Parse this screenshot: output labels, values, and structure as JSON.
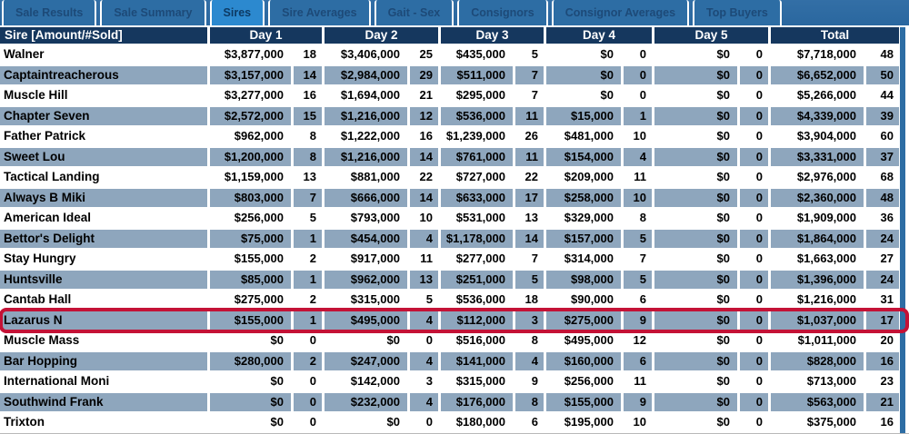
{
  "tabs": [
    {
      "label": "Sale Results",
      "active": false
    },
    {
      "label": "Sale Summary",
      "active": false
    },
    {
      "label": "Sires",
      "active": true
    },
    {
      "label": "Sire Averages",
      "active": false
    },
    {
      "label": "Gait - Sex",
      "active": false
    },
    {
      "label": "Consignors",
      "active": false
    },
    {
      "label": "Consignor Averages",
      "active": false
    },
    {
      "label": "Top Buyers",
      "active": false
    }
  ],
  "table": {
    "sire_header": "Sire [Amount/#Sold]",
    "day_headers": [
      "Day 1",
      "Day 2",
      "Day 3",
      "Day 4",
      "Day 5",
      "Total"
    ],
    "rows": [
      {
        "sire": "Walner",
        "shaded": false,
        "highlighted": false,
        "values": [
          [
            "$3,877,000",
            "18"
          ],
          [
            "$3,406,000",
            "25"
          ],
          [
            "$435,000",
            "5"
          ],
          [
            "$0",
            "0"
          ],
          [
            "$0",
            "0"
          ],
          [
            "$7,718,000",
            "48"
          ]
        ]
      },
      {
        "sire": "Captaintreacherous",
        "shaded": true,
        "highlighted": false,
        "values": [
          [
            "$3,157,000",
            "14"
          ],
          [
            "$2,984,000",
            "29"
          ],
          [
            "$511,000",
            "7"
          ],
          [
            "$0",
            "0"
          ],
          [
            "$0",
            "0"
          ],
          [
            "$6,652,000",
            "50"
          ]
        ]
      },
      {
        "sire": "Muscle Hill",
        "shaded": false,
        "highlighted": false,
        "values": [
          [
            "$3,277,000",
            "16"
          ],
          [
            "$1,694,000",
            "21"
          ],
          [
            "$295,000",
            "7"
          ],
          [
            "$0",
            "0"
          ],
          [
            "$0",
            "0"
          ],
          [
            "$5,266,000",
            "44"
          ]
        ]
      },
      {
        "sire": "Chapter Seven",
        "shaded": true,
        "highlighted": false,
        "values": [
          [
            "$2,572,000",
            "15"
          ],
          [
            "$1,216,000",
            "12"
          ],
          [
            "$536,000",
            "11"
          ],
          [
            "$15,000",
            "1"
          ],
          [
            "$0",
            "0"
          ],
          [
            "$4,339,000",
            "39"
          ]
        ]
      },
      {
        "sire": "Father Patrick",
        "shaded": false,
        "highlighted": false,
        "values": [
          [
            "$962,000",
            "8"
          ],
          [
            "$1,222,000",
            "16"
          ],
          [
            "$1,239,000",
            "26"
          ],
          [
            "$481,000",
            "10"
          ],
          [
            "$0",
            "0"
          ],
          [
            "$3,904,000",
            "60"
          ]
        ]
      },
      {
        "sire": "Sweet Lou",
        "shaded": true,
        "highlighted": false,
        "values": [
          [
            "$1,200,000",
            "8"
          ],
          [
            "$1,216,000",
            "14"
          ],
          [
            "$761,000",
            "11"
          ],
          [
            "$154,000",
            "4"
          ],
          [
            "$0",
            "0"
          ],
          [
            "$3,331,000",
            "37"
          ]
        ]
      },
      {
        "sire": "Tactical Landing",
        "shaded": false,
        "highlighted": false,
        "values": [
          [
            "$1,159,000",
            "13"
          ],
          [
            "$881,000",
            "22"
          ],
          [
            "$727,000",
            "22"
          ],
          [
            "$209,000",
            "11"
          ],
          [
            "$0",
            "0"
          ],
          [
            "$2,976,000",
            "68"
          ]
        ]
      },
      {
        "sire": "Always B Miki",
        "shaded": true,
        "highlighted": false,
        "values": [
          [
            "$803,000",
            "7"
          ],
          [
            "$666,000",
            "14"
          ],
          [
            "$633,000",
            "17"
          ],
          [
            "$258,000",
            "10"
          ],
          [
            "$0",
            "0"
          ],
          [
            "$2,360,000",
            "48"
          ]
        ]
      },
      {
        "sire": "American Ideal",
        "shaded": false,
        "highlighted": false,
        "values": [
          [
            "$256,000",
            "5"
          ],
          [
            "$793,000",
            "10"
          ],
          [
            "$531,000",
            "13"
          ],
          [
            "$329,000",
            "8"
          ],
          [
            "$0",
            "0"
          ],
          [
            "$1,909,000",
            "36"
          ]
        ]
      },
      {
        "sire": "Bettor's Delight",
        "shaded": true,
        "highlighted": false,
        "values": [
          [
            "$75,000",
            "1"
          ],
          [
            "$454,000",
            "4"
          ],
          [
            "$1,178,000",
            "14"
          ],
          [
            "$157,000",
            "5"
          ],
          [
            "$0",
            "0"
          ],
          [
            "$1,864,000",
            "24"
          ]
        ]
      },
      {
        "sire": "Stay Hungry",
        "shaded": false,
        "highlighted": false,
        "values": [
          [
            "$155,000",
            "2"
          ],
          [
            "$917,000",
            "11"
          ],
          [
            "$277,000",
            "7"
          ],
          [
            "$314,000",
            "7"
          ],
          [
            "$0",
            "0"
          ],
          [
            "$1,663,000",
            "27"
          ]
        ]
      },
      {
        "sire": "Huntsville",
        "shaded": true,
        "highlighted": false,
        "values": [
          [
            "$85,000",
            "1"
          ],
          [
            "$962,000",
            "13"
          ],
          [
            "$251,000",
            "5"
          ],
          [
            "$98,000",
            "5"
          ],
          [
            "$0",
            "0"
          ],
          [
            "$1,396,000",
            "24"
          ]
        ]
      },
      {
        "sire": "Cantab Hall",
        "shaded": false,
        "highlighted": false,
        "values": [
          [
            "$275,000",
            "2"
          ],
          [
            "$315,000",
            "5"
          ],
          [
            "$536,000",
            "18"
          ],
          [
            "$90,000",
            "6"
          ],
          [
            "$0",
            "0"
          ],
          [
            "$1,216,000",
            "31"
          ]
        ]
      },
      {
        "sire": "Lazarus N",
        "shaded": true,
        "highlighted": true,
        "values": [
          [
            "$155,000",
            "1"
          ],
          [
            "$495,000",
            "4"
          ],
          [
            "$112,000",
            "3"
          ],
          [
            "$275,000",
            "9"
          ],
          [
            "$0",
            "0"
          ],
          [
            "$1,037,000",
            "17"
          ]
        ]
      },
      {
        "sire": "Muscle Mass",
        "shaded": false,
        "highlighted": false,
        "values": [
          [
            "$0",
            "0"
          ],
          [
            "$0",
            "0"
          ],
          [
            "$516,000",
            "8"
          ],
          [
            "$495,000",
            "12"
          ],
          [
            "$0",
            "0"
          ],
          [
            "$1,011,000",
            "20"
          ]
        ]
      },
      {
        "sire": "Bar Hopping",
        "shaded": true,
        "highlighted": false,
        "values": [
          [
            "$280,000",
            "2"
          ],
          [
            "$247,000",
            "4"
          ],
          [
            "$141,000",
            "4"
          ],
          [
            "$160,000",
            "6"
          ],
          [
            "$0",
            "0"
          ],
          [
            "$828,000",
            "16"
          ]
        ]
      },
      {
        "sire": "International Moni",
        "shaded": false,
        "highlighted": false,
        "values": [
          [
            "$0",
            "0"
          ],
          [
            "$142,000",
            "3"
          ],
          [
            "$315,000",
            "9"
          ],
          [
            "$256,000",
            "11"
          ],
          [
            "$0",
            "0"
          ],
          [
            "$713,000",
            "23"
          ]
        ]
      },
      {
        "sire": "Southwind Frank",
        "shaded": true,
        "highlighted": false,
        "values": [
          [
            "$0",
            "0"
          ],
          [
            "$232,000",
            "4"
          ],
          [
            "$176,000",
            "8"
          ],
          [
            "$155,000",
            "9"
          ],
          [
            "$0",
            "0"
          ],
          [
            "$563,000",
            "21"
          ]
        ]
      },
      {
        "sire": "Trixton",
        "shaded": false,
        "highlighted": false,
        "values": [
          [
            "$0",
            "0"
          ],
          [
            "$0",
            "0"
          ],
          [
            "$180,000",
            "6"
          ],
          [
            "$195,000",
            "10"
          ],
          [
            "$0",
            "0"
          ],
          [
            "$375,000",
            "16"
          ]
        ]
      }
    ]
  },
  "colors": {
    "tabbar_bg": "#2d6da4",
    "active_tab_bg": "#2c89cf",
    "header_bg": "#15375e",
    "shaded_row_bg": "#8ea6bd",
    "highlight_border": "#c41236"
  }
}
